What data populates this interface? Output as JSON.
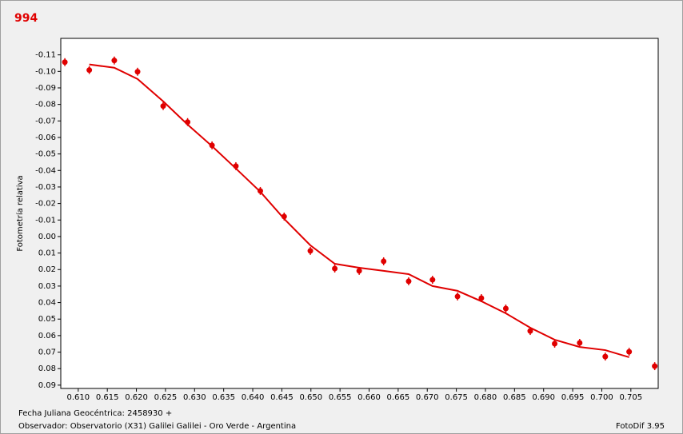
{
  "chart_data": {
    "type": "scatter",
    "title": "994",
    "y_label": "Fotometría relativa",
    "x_label": "Fecha Juliana Geocéntrica: 2458930 +",
    "observer": "Observador: Observatorio (X31) Galilei Galilei - Oro Verde - Argentina",
    "software": "FotoDif 3.95",
    "xlim": [
      0.607,
      0.7097
    ],
    "ylim": [
      -0.12,
      0.092
    ],
    "y_inverted": true,
    "grid": false,
    "xticks": [
      {
        "value": 0.61,
        "label": "0.610"
      },
      0.615,
      {
        "value": 0.62,
        "label": "0.620"
      },
      0.625,
      {
        "value": 0.63,
        "label": "0.630"
      },
      0.635,
      {
        "value": 0.64,
        "label": "0.640"
      },
      0.645,
      {
        "value": 0.65,
        "label": "0.650"
      },
      0.655,
      {
        "value": 0.66,
        "label": "0.660"
      },
      0.665,
      {
        "value": 0.67,
        "label": "0.670"
      },
      0.675,
      {
        "value": 0.68,
        "label": "0.680"
      },
      0.685,
      {
        "value": 0.69,
        "label": "0.690"
      },
      0.695,
      {
        "value": 0.7,
        "label": "0.700"
      },
      0.705
    ],
    "yticks": [
      -0.11,
      {
        "value": -0.1,
        "label": "-0.10"
      },
      -0.09,
      -0.08,
      -0.07,
      -0.06,
      -0.05,
      -0.04,
      -0.03,
      -0.02,
      -0.01,
      {
        "value": 0,
        "label": "0.00"
      },
      0.01,
      0.02,
      0.03,
      0.04,
      0.05,
      0.06,
      0.07,
      0.08,
      0.09
    ],
    "series": [
      {
        "kind": "points",
        "color": "#e00000",
        "x": [
          0.6077,
          0.6119,
          0.6162,
          0.6202,
          0.6246,
          0.6288,
          0.633,
          0.6371,
          0.6413,
          0.6454,
          0.6499,
          0.6541,
          0.6583,
          0.6625,
          0.6668,
          0.6709,
          0.6752,
          0.6793,
          0.6835,
          0.6877,
          0.6919,
          0.6962,
          0.7006,
          0.7047,
          0.7091
        ],
        "values": [
          -0.1056,
          -0.1008,
          -0.1066,
          -0.0998,
          -0.079,
          -0.0693,
          -0.0552,
          -0.0426,
          -0.0276,
          -0.0121,
          0.0087,
          0.0194,
          0.0208,
          0.015,
          0.0271,
          0.0262,
          0.0363,
          0.0373,
          0.0436,
          0.0572,
          0.0649,
          0.0644,
          0.0727,
          0.0698,
          0.0785
        ],
        "errors": [
          0.0024,
          0.0024,
          0.0024,
          0.0024,
          0.0024,
          0.0024,
          0.0024,
          0.0024,
          0.0024,
          0.0024,
          0.0024,
          0.0024,
          0.0024,
          0.0024,
          0.0024,
          0.0024,
          0.0024,
          0.0024,
          0.0024,
          0.0024,
          0.0024,
          0.0024,
          0.0024,
          0.0024,
          0.0024
        ]
      },
      {
        "kind": "line",
        "color": "#e00000",
        "x": [
          0.6119,
          0.6162,
          0.6202,
          0.6246,
          0.6288,
          0.633,
          0.6371,
          0.6413,
          0.6454,
          0.6499,
          0.6541,
          0.6583,
          0.6625,
          0.6668,
          0.6709,
          0.6752,
          0.6793,
          0.6835,
          0.6877,
          0.6919,
          0.6962,
          0.7006,
          0.7047
        ],
        "values": [
          -0.1042,
          -0.1022,
          -0.0954,
          -0.0819,
          -0.0678,
          -0.0547,
          -0.0412,
          -0.0271,
          -0.0107,
          0.0053,
          0.0165,
          0.0189,
          0.0208,
          0.0228,
          0.03,
          0.0329,
          0.0392,
          0.0465,
          0.0552,
          0.0625,
          0.0669,
          0.0688,
          0.0731
        ]
      }
    ]
  }
}
